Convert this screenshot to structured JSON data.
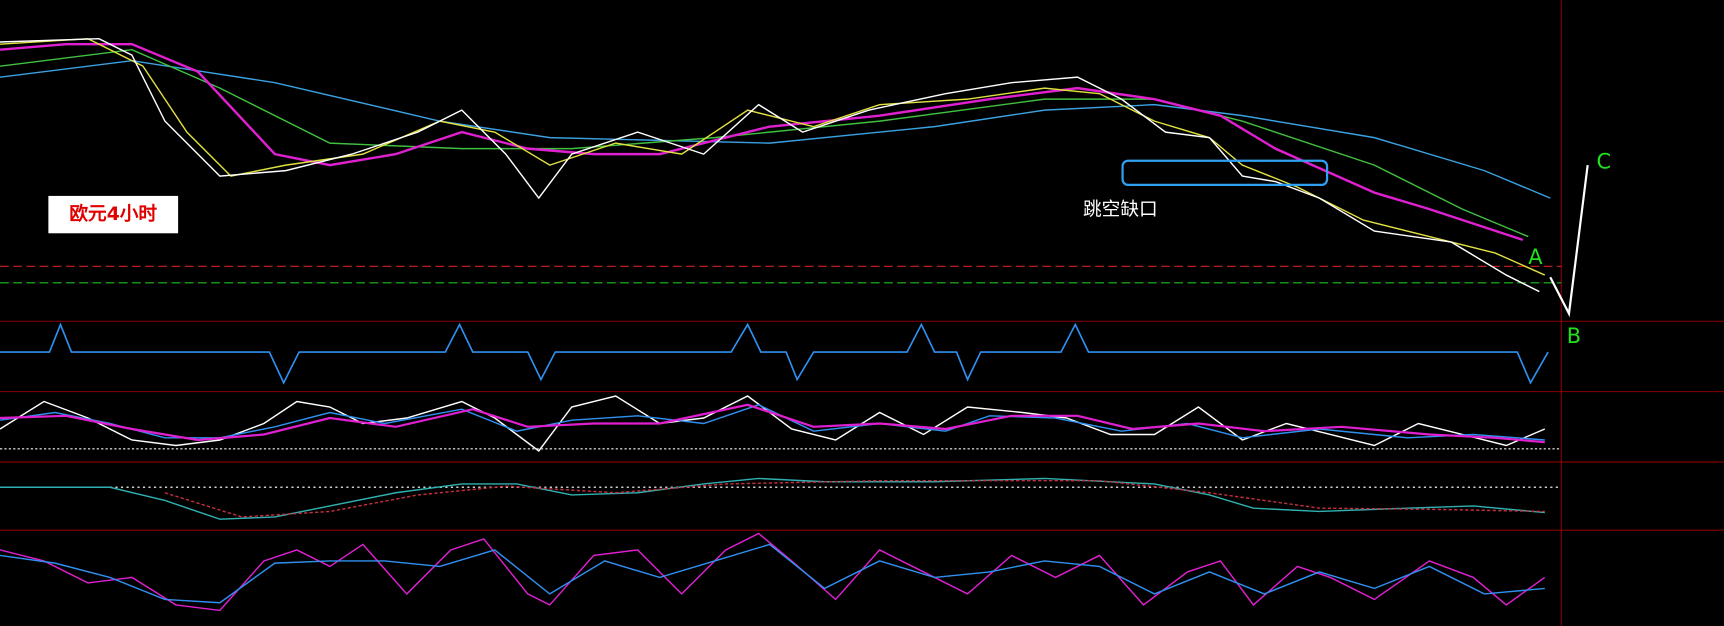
{
  "annotations": {
    "label": "欧元4小时",
    "gap": "跳空缺口",
    "point_a": "A",
    "point_b": "B",
    "point_c": "C"
  }
}
